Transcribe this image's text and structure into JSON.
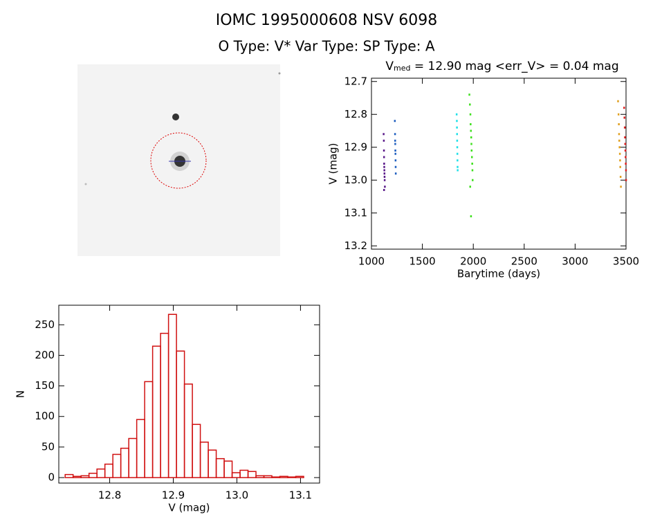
{
  "header": {
    "title": "IOMC 1995000608    NSV  6098",
    "subtitle": "O Type: V*  Var Type:    SP Type: A"
  },
  "chart_data": [
    {
      "type": "scatter",
      "title_parts": [
        "V",
        "med",
        " = 12.90 mag <err_V> = 0.04 mag"
      ],
      "x_label": "Barytime (days)",
      "y_label": "V (mag)",
      "xlim": [
        1000,
        3500
      ],
      "xticks": [
        1000,
        1500,
        2000,
        2500,
        3000,
        3500
      ],
      "ylim": [
        12.69,
        13.21
      ],
      "y_inverted": true,
      "yticks": [
        12.7,
        12.8,
        12.9,
        {
          "value": 13,
          "label": "13.0"
        },
        13.1,
        13.2
      ],
      "series": [
        {
          "color": "#5a1a8a",
          "x": [
            1118,
            1120,
            1121,
            1122,
            1123,
            1124,
            1125,
            1126,
            1127,
            1128,
            1130,
            1122
          ],
          "values": [
            12.86,
            12.88,
            12.91,
            12.93,
            12.95,
            12.96,
            12.97,
            12.98,
            12.99,
            13.0,
            13.02,
            13.03
          ]
        },
        {
          "color": "#1f5fbf",
          "x": [
            1228,
            1230,
            1231,
            1232,
            1233,
            1234,
            1235,
            1236,
            1237
          ],
          "values": [
            12.82,
            12.86,
            12.88,
            12.89,
            12.91,
            12.92,
            12.94,
            12.96,
            12.98
          ]
        },
        {
          "color": "#20e0e8",
          "x": [
            1835,
            1837,
            1838,
            1839,
            1840,
            1841,
            1842,
            1843,
            1844,
            1845
          ],
          "values": [
            12.8,
            12.82,
            12.84,
            12.86,
            12.88,
            12.9,
            12.92,
            12.94,
            12.96,
            12.97
          ]
        },
        {
          "color": "#40e020",
          "x": [
            1960,
            1965,
            1970,
            1972,
            1975,
            1978,
            1980,
            1982,
            1985,
            1988,
            1990,
            1992,
            1968,
            1976
          ],
          "values": [
            12.74,
            12.77,
            12.8,
            12.83,
            12.85,
            12.87,
            12.89,
            12.91,
            12.93,
            12.95,
            12.97,
            13.0,
            13.02,
            13.11
          ]
        },
        {
          "color": "#e0a020",
          "x": [
            3420,
            3425,
            3428,
            3430,
            3432,
            3435,
            3438,
            3440,
            3442,
            3445,
            3448
          ],
          "values": [
            12.76,
            12.8,
            12.83,
            12.86,
            12.88,
            12.9,
            12.92,
            12.94,
            12.96,
            12.99,
            13.02
          ]
        },
        {
          "color": "#e02020",
          "x": [
            3480,
            3483,
            3486,
            3488,
            3490,
            3492,
            3494,
            3496,
            3498,
            3499
          ],
          "values": [
            12.78,
            12.81,
            12.84,
            12.87,
            12.89,
            12.91,
            12.93,
            12.95,
            12.97,
            13.0
          ]
        }
      ]
    },
    {
      "type": "histogram",
      "color": "#d01010",
      "x_label": "V (mag)",
      "y_label": "N",
      "xlim": [
        12.72,
        13.13
      ],
      "xticks": [
        12.8,
        12.9,
        {
          "value": 13,
          "label": "13.0"
        },
        13.1
      ],
      "ylim": [
        -9,
        282
      ],
      "yticks": [
        0,
        50,
        100,
        150,
        200,
        250
      ],
      "bins": [
        12.73,
        12.7425,
        12.755,
        12.7675,
        12.78,
        12.7925,
        12.805,
        12.8175,
        12.83,
        12.8425,
        12.855,
        12.8675,
        12.88,
        12.8925,
        12.905,
        12.9175,
        12.93,
        12.9425,
        12.955,
        12.9675,
        12.98,
        12.9925,
        13.005,
        13.0175,
        13.03,
        13.0425,
        13.055,
        13.0675,
        13.08,
        13.0925,
        13.105
      ],
      "values": [
        5,
        2,
        3,
        7,
        14,
        22,
        38,
        48,
        64,
        95,
        157,
        215,
        236,
        267,
        207,
        153,
        87,
        58,
        45,
        31,
        27,
        8,
        12,
        10,
        3,
        3,
        1,
        2,
        1,
        2
      ]
    }
  ]
}
